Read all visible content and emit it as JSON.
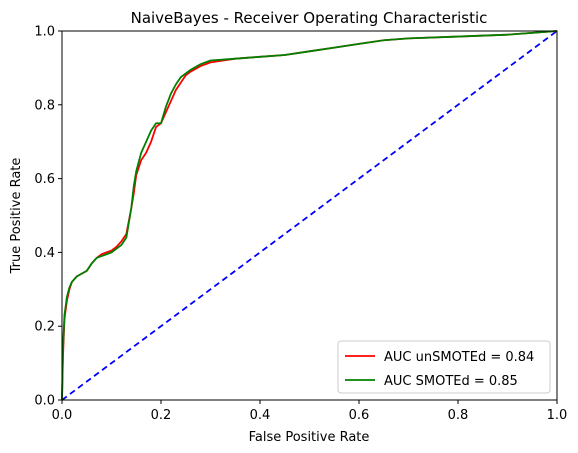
{
  "chart_data": {
    "type": "line",
    "title": "NaiveBayes - Receiver Operating Characteristic",
    "xlabel": "False Positive Rate",
    "ylabel": "True Positive Rate",
    "xlim": [
      0,
      1
    ],
    "ylim": [
      0,
      1
    ],
    "xticks": [
      "0.0",
      "0.2",
      "0.4",
      "0.6",
      "0.8",
      "1.0"
    ],
    "yticks": [
      "0.0",
      "0.2",
      "0.4",
      "0.6",
      "0.8",
      "1.0"
    ],
    "grid": false,
    "legend_position": "lower-right",
    "series": [
      {
        "name": "AUC unSMOTEd = 0.84",
        "color": "#ff0000",
        "x": [
          0.0,
          0.002,
          0.005,
          0.01,
          0.015,
          0.02,
          0.03,
          0.05,
          0.06,
          0.07,
          0.08,
          0.09,
          0.1,
          0.11,
          0.12,
          0.13,
          0.14,
          0.145,
          0.15,
          0.155,
          0.16,
          0.17,
          0.18,
          0.19,
          0.2,
          0.21,
          0.22,
          0.23,
          0.24,
          0.25,
          0.26,
          0.28,
          0.3,
          0.35,
          0.4,
          0.45,
          0.5,
          0.55,
          0.6,
          0.65,
          0.7,
          0.8,
          0.9,
          0.95,
          1.0
        ],
        "y": [
          0.0,
          0.12,
          0.22,
          0.27,
          0.3,
          0.32,
          0.335,
          0.35,
          0.37,
          0.385,
          0.395,
          0.4,
          0.405,
          0.415,
          0.43,
          0.45,
          0.52,
          0.56,
          0.61,
          0.63,
          0.65,
          0.67,
          0.7,
          0.74,
          0.75,
          0.78,
          0.81,
          0.84,
          0.86,
          0.88,
          0.89,
          0.905,
          0.915,
          0.925,
          0.93,
          0.935,
          0.945,
          0.955,
          0.965,
          0.975,
          0.98,
          0.985,
          0.99,
          0.995,
          1.0
        ]
      },
      {
        "name": "AUC SMOTEd = 0.85",
        "color": "#008000",
        "x": [
          0.0,
          0.002,
          0.005,
          0.01,
          0.015,
          0.02,
          0.03,
          0.05,
          0.06,
          0.07,
          0.08,
          0.09,
          0.1,
          0.11,
          0.12,
          0.13,
          0.14,
          0.145,
          0.15,
          0.155,
          0.16,
          0.17,
          0.18,
          0.19,
          0.2,
          0.21,
          0.22,
          0.23,
          0.24,
          0.25,
          0.26,
          0.28,
          0.3,
          0.35,
          0.4,
          0.45,
          0.5,
          0.55,
          0.6,
          0.65,
          0.7,
          0.8,
          0.9,
          0.95,
          1.0
        ],
        "y": [
          0.0,
          0.14,
          0.23,
          0.28,
          0.305,
          0.32,
          0.335,
          0.35,
          0.37,
          0.385,
          0.39,
          0.395,
          0.4,
          0.41,
          0.42,
          0.44,
          0.52,
          0.58,
          0.62,
          0.645,
          0.67,
          0.7,
          0.73,
          0.75,
          0.75,
          0.795,
          0.83,
          0.855,
          0.875,
          0.885,
          0.895,
          0.91,
          0.92,
          0.925,
          0.93,
          0.935,
          0.945,
          0.955,
          0.965,
          0.975,
          0.98,
          0.985,
          0.99,
          0.995,
          1.0
        ]
      }
    ],
    "reference_line": {
      "color": "#0000ff",
      "style": "dashed",
      "x": [
        0,
        1
      ],
      "y": [
        0,
        1
      ]
    }
  }
}
